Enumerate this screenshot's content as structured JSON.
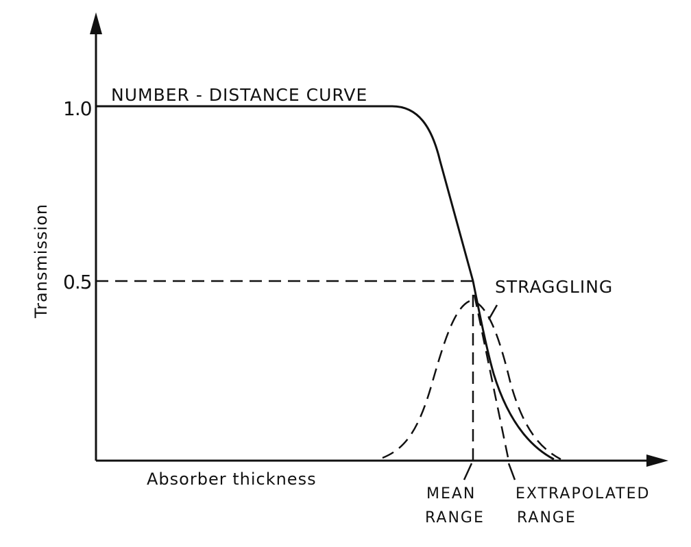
{
  "diagram": {
    "curve_label": "NUMBER - DISTANCE CURVE",
    "y_axis_label": "Transmission",
    "x_axis_label": "Absorber thickness",
    "y_ticks": [
      "1.0",
      "0.5"
    ],
    "straggling_label": "STRAGGLING",
    "mean_range_line1": "MEAN",
    "mean_range_line2": "RANGE",
    "extrapolated_line1": "EXTRAPOLATED",
    "extrapolated_line2": "RANGE"
  }
}
